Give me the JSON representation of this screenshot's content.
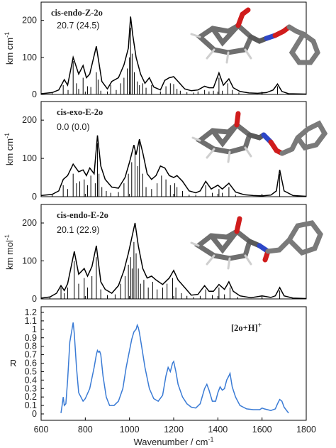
{
  "figure": {
    "x_axis": {
      "label": "Wavenumber / cm",
      "label_superscript": "-1",
      "range": [
        600,
        1800
      ],
      "ticks": [
        600,
        800,
        1000,
        1200,
        1400,
        1600,
        1800
      ]
    }
  },
  "chart_data": [
    {
      "type": "line",
      "panel": "calc",
      "title": "cis-endo-Z-2o",
      "energy_label": "20.7 (24.5)",
      "ylabel": "km cm",
      "ylabel_superscript": "-1",
      "ylim": [
        0,
        230
      ],
      "yticks": [
        0,
        100,
        200
      ],
      "xlim": [
        600,
        1800
      ],
      "envelope": {
        "x": [
          600,
          650,
          680,
          705,
          720,
          745,
          770,
          790,
          805,
          820,
          850,
          875,
          900,
          920,
          950,
          975,
          995,
          1005,
          1015,
          1030,
          1050,
          1070,
          1090,
          1110,
          1140,
          1160,
          1180,
          1200,
          1220,
          1250,
          1280,
          1310,
          1340,
          1360,
          1380,
          1405,
          1425,
          1450,
          1470,
          1500,
          1540,
          1580,
          1620,
          1650,
          1670,
          1690,
          1720,
          1800
        ],
        "y": [
          2,
          5,
          12,
          40,
          25,
          100,
          55,
          78,
          45,
          55,
          130,
          35,
          15,
          35,
          45,
          80,
          125,
          210,
          160,
          100,
          55,
          30,
          45,
          20,
          12,
          38,
          45,
          48,
          35,
          15,
          10,
          12,
          22,
          18,
          18,
          58,
          25,
          42,
          18,
          8,
          4,
          3,
          5,
          12,
          28,
          8,
          2,
          1
        ]
      },
      "sticks": {
        "x": [
          650,
          700,
          722,
          745,
          760,
          770,
          790,
          810,
          825,
          850,
          858,
          870,
          900,
          915,
          940,
          960,
          975,
          990,
          1000,
          1005,
          1012,
          1022,
          1035,
          1045,
          1060,
          1075,
          1100,
          1140,
          1165,
          1185,
          1200,
          1215,
          1230,
          1260,
          1290,
          1310,
          1340,
          1360,
          1380,
          1405,
          1420,
          1445,
          1465,
          1495,
          1600,
          1670
        ],
        "y": [
          5,
          25,
          12,
          90,
          30,
          15,
          45,
          22,
          20,
          60,
          40,
          10,
          8,
          25,
          12,
          30,
          45,
          70,
          100,
          180,
          110,
          60,
          35,
          25,
          30,
          18,
          25,
          8,
          22,
          30,
          28,
          15,
          10,
          6,
          5,
          8,
          12,
          8,
          10,
          45,
          10,
          30,
          12,
          5,
          3,
          22
        ]
      }
    },
    {
      "type": "line",
      "panel": "calc",
      "title": "cis-exo-E-2o",
      "energy_label": "0.0 (0.0)",
      "ylabel": "km cm",
      "ylabel_superscript": "-1",
      "ylim": [
        0,
        230
      ],
      "yticks": [
        0,
        100,
        200
      ],
      "xlim": [
        600,
        1800
      ],
      "envelope": {
        "x": [
          600,
          650,
          680,
          700,
          720,
          745,
          770,
          790,
          805,
          820,
          840,
          855,
          870,
          890,
          920,
          950,
          980,
          1000,
          1020,
          1030,
          1045,
          1060,
          1080,
          1100,
          1120,
          1140,
          1160,
          1180,
          1200,
          1215,
          1240,
          1270,
          1300,
          1320,
          1345,
          1370,
          1400,
          1420,
          1450,
          1480,
          1520,
          1560,
          1600,
          1640,
          1665,
          1680,
          1700,
          1740,
          1800
        ],
        "y": [
          3,
          6,
          15,
          45,
          55,
          85,
          65,
          70,
          55,
          75,
          60,
          160,
          80,
          45,
          25,
          22,
          50,
          90,
          135,
          110,
          150,
          115,
          60,
          45,
          55,
          80,
          75,
          55,
          50,
          55,
          40,
          15,
          10,
          15,
          40,
          20,
          30,
          20,
          35,
          12,
          5,
          3,
          2,
          4,
          15,
          70,
          15,
          3,
          1
        ]
      },
      "sticks": {
        "x": [
          650,
          700,
          720,
          745,
          760,
          775,
          795,
          810,
          825,
          845,
          855,
          862,
          875,
          895,
          915,
          950,
          975,
          995,
          1010,
          1025,
          1038,
          1045,
          1060,
          1075,
          1100,
          1125,
          1145,
          1165,
          1185,
          1205,
          1215,
          1240,
          1270,
          1300,
          1345,
          1375,
          1405,
          1420,
          1450,
          1480,
          1600,
          1680
        ],
        "y": [
          5,
          30,
          20,
          60,
          35,
          40,
          45,
          30,
          55,
          35,
          140,
          60,
          25,
          15,
          10,
          12,
          35,
          60,
          90,
          120,
          80,
          150,
          60,
          25,
          20,
          35,
          55,
          45,
          30,
          35,
          25,
          15,
          5,
          5,
          30,
          10,
          20,
          10,
          25,
          5,
          3,
          60
        ]
      }
    },
    {
      "type": "line",
      "panel": "calc",
      "title": "cis-endo-E-2o",
      "energy_label": "20.1 (22.9)",
      "ylabel": "km mol",
      "ylabel_superscript": "-1",
      "ylim": [
        0,
        230
      ],
      "yticks": [
        0,
        100,
        200
      ],
      "xlim": [
        600,
        1800
      ],
      "envelope": {
        "x": [
          600,
          640,
          670,
          690,
          705,
          720,
          750,
          770,
          795,
          810,
          830,
          850,
          870,
          890,
          920,
          950,
          975,
          995,
          1010,
          1025,
          1040,
          1060,
          1080,
          1100,
          1120,
          1150,
          1180,
          1200,
          1220,
          1250,
          1280,
          1310,
          1340,
          1360,
          1380,
          1405,
          1430,
          1450,
          1470,
          1500,
          1550,
          1600,
          1640,
          1660,
          1680,
          1700,
          1740,
          1800
        ],
        "y": [
          2,
          5,
          15,
          35,
          22,
          40,
          125,
          65,
          80,
          60,
          85,
          140,
          45,
          25,
          15,
          35,
          75,
          120,
          160,
          200,
          140,
          80,
          55,
          60,
          50,
          38,
          55,
          75,
          50,
          30,
          10,
          12,
          35,
          20,
          20,
          38,
          25,
          45,
          20,
          8,
          3,
          8,
          4,
          8,
          30,
          8,
          2,
          1
        ]
      },
      "sticks": {
        "x": [
          640,
          690,
          705,
          720,
          750,
          770,
          795,
          810,
          830,
          850,
          870,
          900,
          935,
          960,
          980,
          995,
          1005,
          1012,
          1020,
          1030,
          1040,
          1050,
          1065,
          1085,
          1105,
          1125,
          1150,
          1170,
          1195,
          1210,
          1235,
          1260,
          1290,
          1320,
          1345,
          1375,
          1405,
          1430,
          1455,
          1490,
          1600,
          1680
        ],
        "y": [
          5,
          30,
          15,
          30,
          100,
          40,
          55,
          30,
          60,
          110,
          25,
          10,
          12,
          40,
          60,
          90,
          110,
          80,
          150,
          120,
          80,
          40,
          50,
          30,
          45,
          25,
          30,
          40,
          55,
          30,
          15,
          8,
          5,
          8,
          25,
          10,
          30,
          12,
          30,
          5,
          3,
          22
        ]
      }
    },
    {
      "type": "line",
      "panel": "exp",
      "legend": "[2o+H]",
      "legend_superscript": "+",
      "ylabel": "R",
      "ylim": [
        0,
        1.2
      ],
      "yticks": [
        0,
        0.1,
        0.2,
        0.3,
        0.4,
        0.5,
        0.6,
        0.7,
        0.8,
        0.9,
        1.0,
        1.1,
        1.2
      ],
      "ytick_labels": [
        "0",
        "0.1",
        "0.2",
        "0.3",
        "0.4",
        "0.5",
        "0.6",
        "0.7",
        "0.8",
        "0.9",
        "1",
        "1.1",
        "1.2"
      ],
      "xlim": [
        600,
        1800
      ],
      "color": "#3a7bd5",
      "series": [
        {
          "x": [
            690,
            695,
            700,
            705,
            712,
            720,
            730,
            740,
            745,
            750,
            760,
            770,
            790,
            800,
            820,
            840,
            850,
            855,
            860,
            865,
            870,
            880,
            895,
            910,
            930,
            950,
            970,
            985,
            1000,
            1010,
            1020,
            1030,
            1035,
            1040,
            1045,
            1055,
            1070,
            1090,
            1110,
            1130,
            1150,
            1165,
            1175,
            1185,
            1195,
            1200,
            1210,
            1220,
            1240,
            1260,
            1280,
            1300,
            1320,
            1340,
            1350,
            1360,
            1375,
            1390,
            1400,
            1410,
            1420,
            1430,
            1440,
            1450,
            1455,
            1465,
            1480,
            1500,
            1530,
            1560,
            1590,
            1600,
            1610,
            1640,
            1660,
            1670,
            1680,
            1690,
            1700,
            1720
          ],
          "y": [
            0.01,
            0.1,
            0.2,
            0.1,
            0.12,
            0.4,
            0.85,
            1.0,
            1.08,
            0.95,
            0.55,
            0.25,
            0.15,
            0.18,
            0.3,
            0.55,
            0.7,
            0.75,
            0.73,
            0.74,
            0.7,
            0.45,
            0.2,
            0.1,
            0.1,
            0.15,
            0.3,
            0.55,
            0.75,
            0.88,
            0.97,
            1.0,
            1.05,
            1.02,
            0.96,
            0.8,
            0.55,
            0.3,
            0.18,
            0.15,
            0.22,
            0.45,
            0.55,
            0.5,
            0.6,
            0.62,
            0.5,
            0.35,
            0.2,
            0.12,
            0.08,
            0.07,
            0.12,
            0.3,
            0.35,
            0.28,
            0.15,
            0.15,
            0.25,
            0.32,
            0.28,
            0.3,
            0.4,
            0.45,
            0.48,
            0.32,
            0.2,
            0.1,
            0.06,
            0.05,
            0.05,
            0.07,
            0.06,
            0.04,
            0.06,
            0.12,
            0.17,
            0.15,
            0.08,
            0.01
          ]
        }
      ]
    }
  ]
}
